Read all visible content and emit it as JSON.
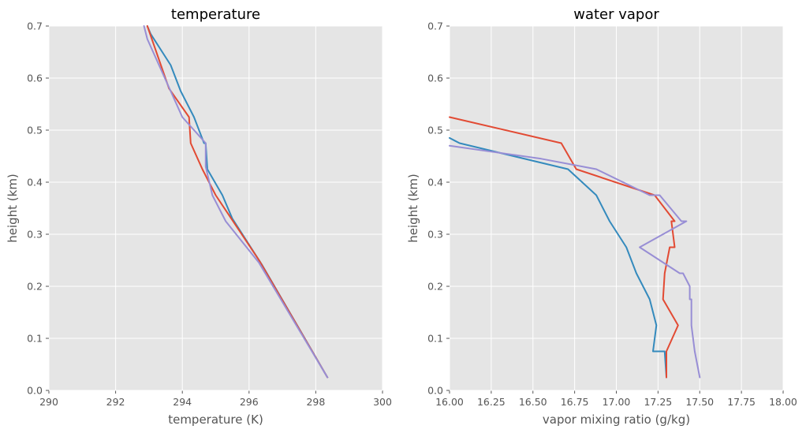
{
  "chart_data": [
    {
      "type": "line",
      "title": "temperature",
      "xlabel": "temperature (K)",
      "ylabel": "height (km)",
      "xlim": [
        290,
        300
      ],
      "ylim": [
        0,
        0.7
      ],
      "xticks": [
        290,
        292,
        294,
        296,
        298,
        300
      ],
      "yticks": [
        0.0,
        0.1,
        0.2,
        0.3,
        0.4,
        0.5,
        0.6,
        0.7
      ],
      "xtick_labels": [
        "290",
        "292",
        "294",
        "296",
        "298",
        "300"
      ],
      "ytick_labels": [
        "0.0",
        "0.1",
        "0.2",
        "0.3",
        "0.4",
        "0.5",
        "0.6",
        "0.7"
      ],
      "grid": true,
      "series": [
        {
          "color": "#348abd",
          "x": [
            298.35,
            296.4,
            295.5,
            295.2,
            294.75,
            294.7,
            294.65,
            294.35,
            293.95,
            293.65,
            293.05,
            292.95
          ],
          "y": [
            0.025,
            0.24,
            0.33,
            0.375,
            0.425,
            0.475,
            0.475,
            0.525,
            0.575,
            0.625,
            0.685,
            0.7
          ]
        },
        {
          "color": "#e24a33",
          "x": [
            298.35,
            296.3,
            295.0,
            294.6,
            294.25,
            294.2,
            293.6,
            292.95
          ],
          "y": [
            0.025,
            0.25,
            0.375,
            0.425,
            0.475,
            0.525,
            0.58,
            0.7
          ]
        },
        {
          "color": "#988ed5",
          "x": [
            298.35,
            296.3,
            295.3,
            294.9,
            294.7,
            294.7,
            294.0,
            293.65,
            293.3,
            292.95,
            292.85
          ],
          "y": [
            0.025,
            0.245,
            0.325,
            0.375,
            0.43,
            0.475,
            0.525,
            0.575,
            0.625,
            0.675,
            0.7
          ]
        }
      ]
    },
    {
      "type": "line",
      "title": "water vapor",
      "xlabel": "vapor mixing ratio (g/kg)",
      "ylabel": "height (km)",
      "xlim": [
        16.0,
        18.0
      ],
      "ylim": [
        0,
        0.7
      ],
      "xticks": [
        16.0,
        16.25,
        16.5,
        16.75,
        17.0,
        17.25,
        17.5,
        17.75,
        18.0
      ],
      "yticks": [
        0.0,
        0.1,
        0.2,
        0.3,
        0.4,
        0.5,
        0.6,
        0.7
      ],
      "xtick_labels": [
        "16.00",
        "16.25",
        "16.50",
        "16.75",
        "17.00",
        "17.25",
        "17.50",
        "17.75",
        "18.00"
      ],
      "ytick_labels": [
        "0.0",
        "0.1",
        "0.2",
        "0.3",
        "0.4",
        "0.5",
        "0.6",
        "0.7"
      ],
      "grid": true,
      "series": [
        {
          "color": "#348abd",
          "x": [
            17.3,
            17.29,
            17.22,
            17.24,
            17.2,
            17.12,
            17.06,
            16.96,
            16.88,
            16.71,
            16.06,
            16.03,
            16.0
          ],
          "y": [
            0.025,
            0.075,
            0.075,
            0.125,
            0.175,
            0.225,
            0.275,
            0.325,
            0.375,
            0.425,
            0.475,
            0.48,
            0.485
          ]
        },
        {
          "color": "#e24a33",
          "x": [
            17.3,
            17.3,
            17.37,
            17.28,
            17.29,
            17.32,
            17.35,
            17.33,
            17.35,
            17.23,
            16.76,
            16.67,
            16.0
          ],
          "y": [
            0.025,
            0.075,
            0.125,
            0.175,
            0.225,
            0.275,
            0.275,
            0.325,
            0.325,
            0.375,
            0.425,
            0.475,
            0.525
          ]
        },
        {
          "color": "#988ed5",
          "x": [
            17.5,
            17.47,
            17.45,
            17.45,
            17.44,
            17.44,
            17.4,
            17.38,
            17.14,
            17.42,
            17.39,
            17.26,
            17.2,
            16.88,
            16.55,
            16.0
          ],
          "y": [
            0.025,
            0.075,
            0.125,
            0.175,
            0.175,
            0.2,
            0.225,
            0.225,
            0.275,
            0.325,
            0.325,
            0.375,
            0.375,
            0.425,
            0.445,
            0.47
          ]
        }
      ]
    }
  ]
}
